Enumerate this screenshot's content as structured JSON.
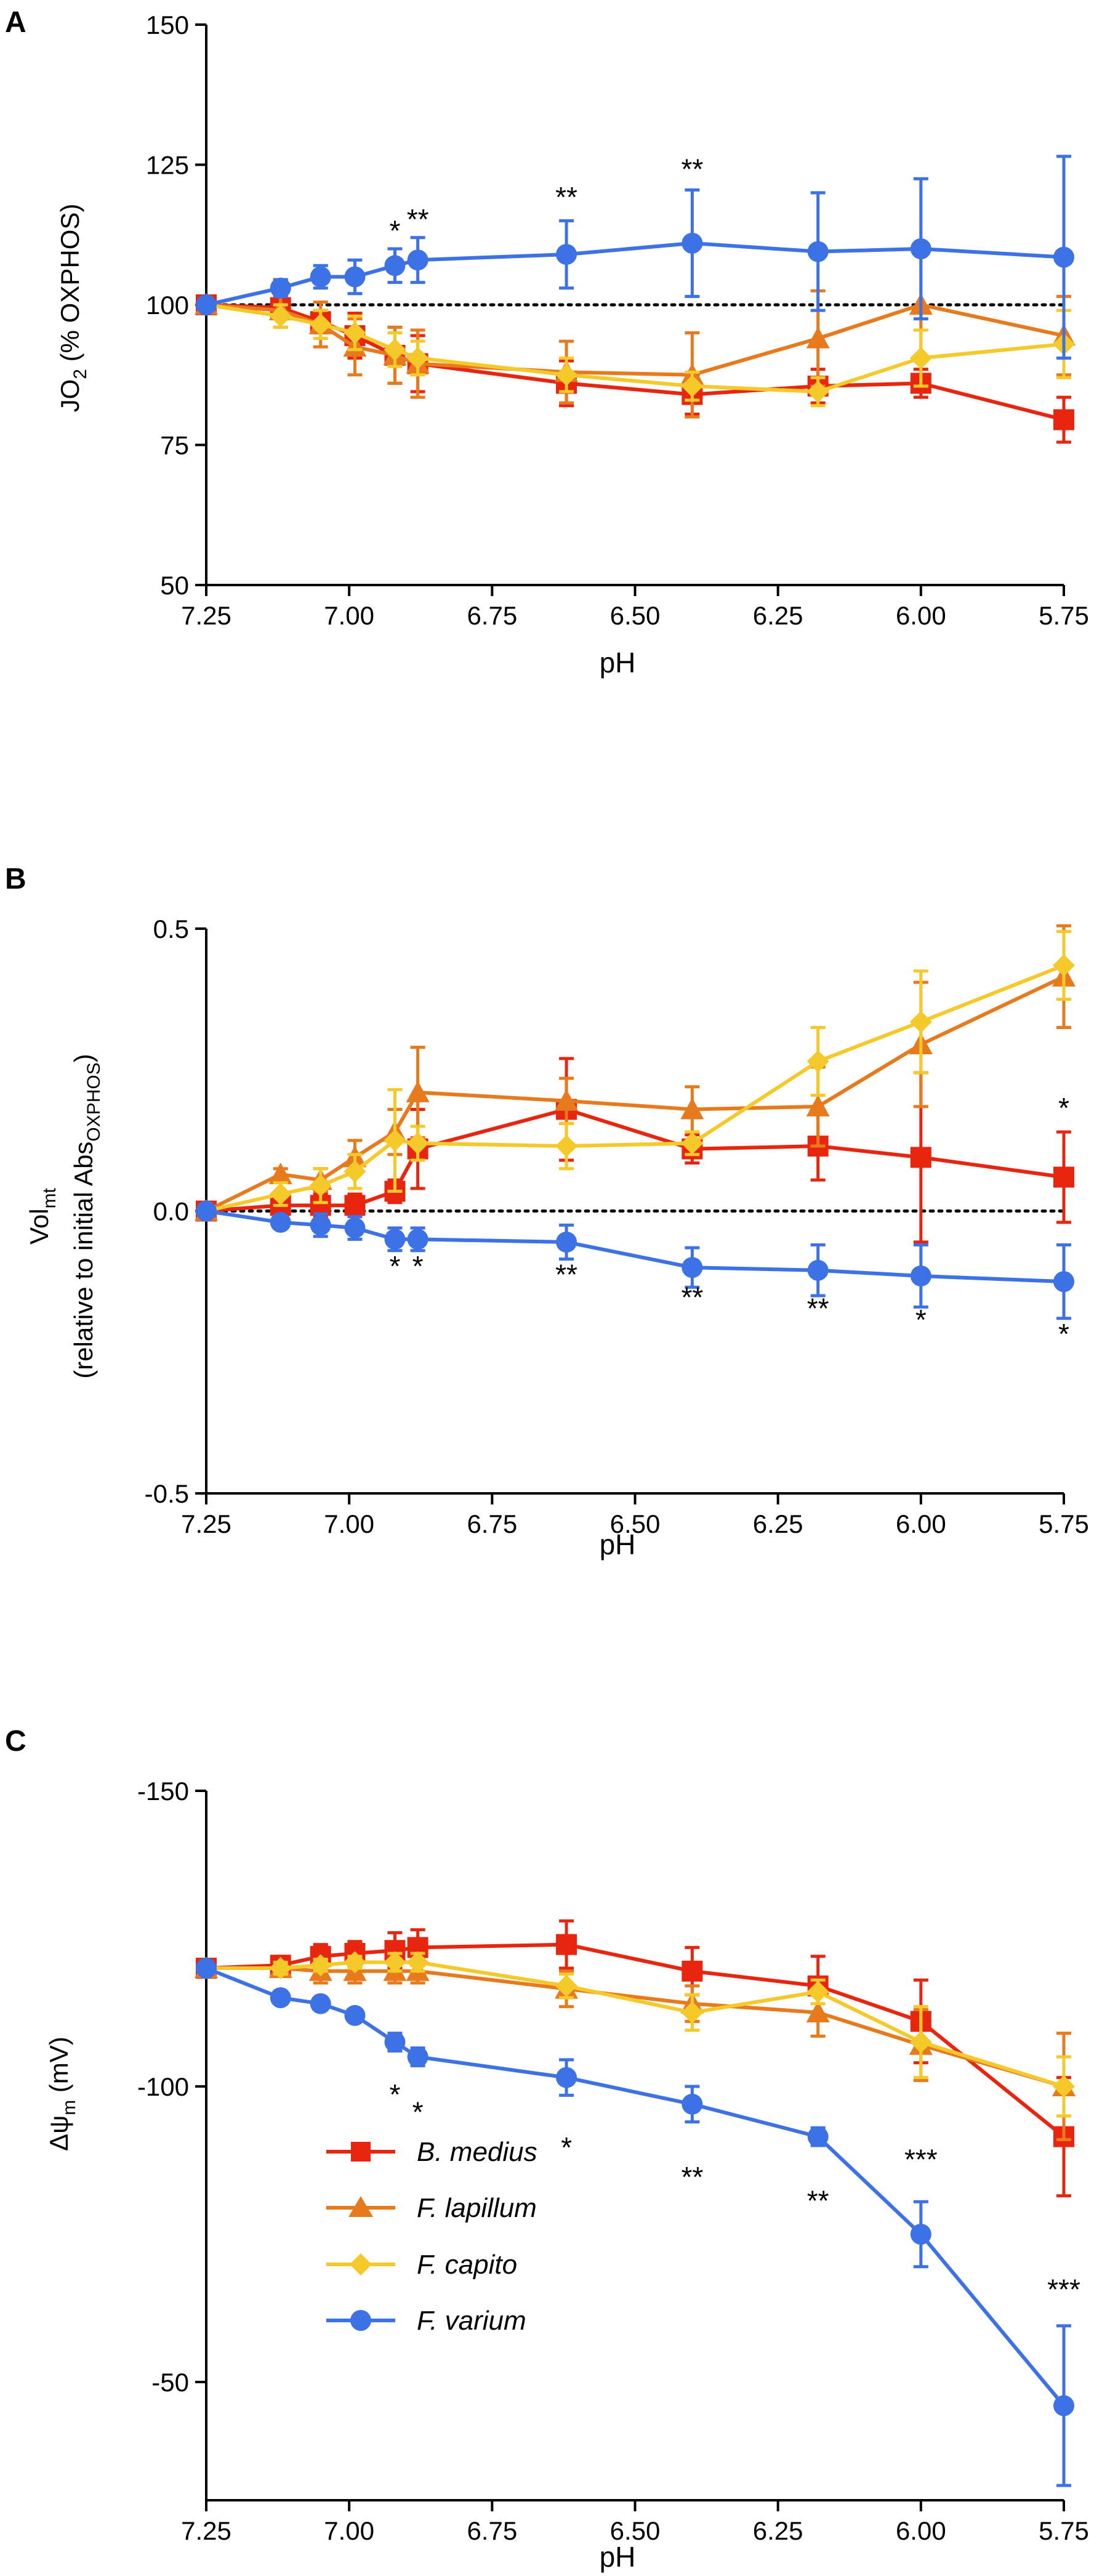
{
  "legend": {
    "items": [
      {
        "name": "B. medius",
        "color": "#E8260F",
        "marker": "square"
      },
      {
        "name": "F. lapillum",
        "color": "#E87A1E",
        "marker": "triangle"
      },
      {
        "name": "F. capito",
        "color": "#F5C92A",
        "marker": "diamond"
      },
      {
        "name": "F. varium",
        "color": "#3D71E6",
        "marker": "circle"
      }
    ],
    "placement": "inside bottom-left of panel C"
  },
  "chart_data": [
    {
      "panel": "A",
      "type": "line",
      "title": "",
      "xlabel": "pH",
      "ylabel": "JO2 (% OXPHOS)",
      "ylabel_main": "JO",
      "ylabel_sub": "2",
      "ylabel_tail": " (% OXPHOS)",
      "xlim": [
        7.25,
        5.75
      ],
      "ylim": [
        50,
        150
      ],
      "xticks": [
        7.25,
        7.0,
        6.75,
        6.5,
        6.25,
        6.0,
        5.75
      ],
      "xtick_labels": [
        "7.25",
        "7.00",
        "6.75",
        "6.50",
        "6.25",
        "6.00",
        "5.75"
      ],
      "yticks": [
        50,
        75,
        100,
        125,
        150
      ],
      "ytick_labels": [
        "50",
        "75",
        "100",
        "125",
        "150"
      ],
      "reference_line": 100,
      "series": [
        {
          "name": "B. medius",
          "color": "#E8260F",
          "marker": "square",
          "x": [
            7.25,
            7.12,
            7.05,
            6.99,
            6.92,
            6.88,
            6.62,
            6.4,
            6.18,
            6.0,
            5.75
          ],
          "y": [
            100,
            99.5,
            97,
            94.5,
            91,
            89.5,
            86,
            84,
            85.5,
            86,
            79.5
          ],
          "err": [
            0,
            2,
            2,
            4,
            5,
            5,
            4,
            3.5,
            3,
            2.5,
            4
          ]
        },
        {
          "name": "F. lapillum",
          "color": "#E87A1E",
          "marker": "triangle",
          "x": [
            7.25,
            7.12,
            7.05,
            6.99,
            6.92,
            6.88,
            6.62,
            6.4,
            6.18,
            6.0,
            5.75
          ],
          "y": [
            100,
            99,
            96.5,
            92.5,
            91,
            89.5,
            88,
            87.5,
            94,
            100,
            94.5
          ],
          "err": [
            0,
            3,
            4,
            5,
            5,
            6,
            5.5,
            7.5,
            8.5,
            10,
            7
          ]
        },
        {
          "name": "F. capito",
          "color": "#F5C92A",
          "marker": "diamond",
          "x": [
            7.25,
            7.12,
            7.05,
            6.99,
            6.92,
            6.88,
            6.62,
            6.4,
            6.18,
            6.0,
            5.75
          ],
          "y": [
            100,
            98,
            96.5,
            95,
            92,
            90.5,
            87.5,
            85.5,
            84.5,
            90.5,
            93
          ],
          "err": [
            0,
            2,
            2.5,
            3,
            3,
            3,
            3,
            2.5,
            2.5,
            5,
            6
          ]
        },
        {
          "name": "F. varium",
          "color": "#3D71E6",
          "marker": "circle",
          "x": [
            7.25,
            7.12,
            7.05,
            6.99,
            6.92,
            6.88,
            6.62,
            6.4,
            6.18,
            6.0,
            5.75
          ],
          "y": [
            100,
            103,
            105,
            105,
            107,
            108,
            109,
            111,
            109.5,
            110,
            108.5
          ],
          "err": [
            0,
            1.5,
            2,
            3,
            3,
            4,
            6,
            9.5,
            10.5,
            12.5,
            18
          ]
        }
      ],
      "annotations": [
        {
          "x": 6.92,
          "y": 111.5,
          "text": "*"
        },
        {
          "x": 6.88,
          "y": 113.5,
          "text": "**"
        },
        {
          "x": 6.62,
          "y": 117.5,
          "text": "**"
        },
        {
          "x": 6.4,
          "y": 122.5,
          "text": "**"
        }
      ]
    },
    {
      "panel": "B",
      "type": "line",
      "title": "",
      "xlabel": "pH",
      "ylabel_line1_main": "Vol",
      "ylabel_line1_sub": "mt",
      "ylabel_line2_main": "(relative to initial Abs",
      "ylabel_line2_sub": "OXPHOS",
      "ylabel_line2_tail": ")",
      "xlim": [
        7.25,
        5.75
      ],
      "ylim": [
        -0.5,
        0.5
      ],
      "xticks": [
        7.25,
        7.0,
        6.75,
        6.5,
        6.25,
        6.0,
        5.75
      ],
      "xtick_labels": [
        "7.25",
        "7.00",
        "6.75",
        "6.50",
        "6.25",
        "6.00",
        "5.75"
      ],
      "yticks": [
        -0.5,
        0.0,
        0.5
      ],
      "ytick_labels": [
        "-0.5",
        "0.0",
        "0.5"
      ],
      "reference_line": 0,
      "series": [
        {
          "name": "B. medius",
          "color": "#E8260F",
          "marker": "square",
          "x": [
            7.25,
            7.12,
            7.05,
            6.99,
            6.92,
            6.88,
            6.62,
            6.4,
            6.18,
            6.0,
            5.75
          ],
          "y": [
            0,
            0.01,
            0.01,
            0.01,
            0.035,
            0.11,
            0.18,
            0.11,
            0.115,
            0.095,
            0.06
          ],
          "err": [
            0,
            0.01,
            0.02,
            0.02,
            0.02,
            0.07,
            0.09,
            0.025,
            0.06,
            0.15,
            0.08
          ]
        },
        {
          "name": "F. lapillum",
          "color": "#E87A1E",
          "marker": "triangle",
          "x": [
            7.25,
            7.12,
            7.05,
            6.99,
            6.92,
            6.88,
            6.62,
            6.4,
            6.18,
            6.0,
            5.75
          ],
          "y": [
            0,
            0.065,
            0.055,
            0.095,
            0.14,
            0.21,
            0.195,
            0.18,
            0.185,
            0.295,
            0.415
          ],
          "err": [
            0,
            0.01,
            0.02,
            0.03,
            0.04,
            0.08,
            0.04,
            0.04,
            0.07,
            0.11,
            0.09
          ]
        },
        {
          "name": "F. capito",
          "color": "#F5C92A",
          "marker": "diamond",
          "x": [
            7.25,
            7.12,
            7.05,
            6.99,
            6.92,
            6.88,
            6.62,
            6.4,
            6.18,
            6.0,
            5.75
          ],
          "y": [
            0,
            0.03,
            0.045,
            0.07,
            0.125,
            0.12,
            0.115,
            0.12,
            0.265,
            0.335,
            0.435
          ],
          "err": [
            0,
            0.02,
            0.03,
            0.03,
            0.09,
            0.03,
            0.04,
            0.02,
            0.06,
            0.09,
            0.06
          ]
        },
        {
          "name": "F. varium",
          "color": "#3D71E6",
          "marker": "circle",
          "x": [
            7.25,
            7.12,
            7.05,
            6.99,
            6.92,
            6.88,
            6.62,
            6.4,
            6.18,
            6.0,
            5.75
          ],
          "y": [
            0,
            -0.02,
            -0.025,
            -0.03,
            -0.05,
            -0.05,
            -0.055,
            -0.1,
            -0.105,
            -0.115,
            -0.125
          ],
          "err": [
            0,
            0.01,
            0.02,
            0.02,
            0.02,
            0.02,
            0.03,
            0.035,
            0.045,
            0.055,
            0.065
          ]
        }
      ],
      "annotations": [
        {
          "x": 6.92,
          "y": -0.115,
          "text": "*"
        },
        {
          "x": 6.88,
          "y": -0.115,
          "text": "*"
        },
        {
          "x": 6.62,
          "y": -0.13,
          "text": "**"
        },
        {
          "x": 6.4,
          "y": -0.17,
          "text": "**"
        },
        {
          "x": 6.18,
          "y": -0.19,
          "text": "**"
        },
        {
          "x": 6.0,
          "y": -0.21,
          "text": "*"
        },
        {
          "x": 5.75,
          "y": -0.235,
          "text": "*"
        },
        {
          "x": 5.75,
          "y": 0.165,
          "text": "*"
        }
      ]
    },
    {
      "panel": "C",
      "type": "line",
      "title": "",
      "xlabel": "pH",
      "ylabel_pre": "Δψ",
      "ylabel_sub": "m",
      "ylabel_tail": " (mV)",
      "xlim": [
        7.25,
        5.75
      ],
      "ylim": [
        -30,
        -150
      ],
      "xticks": [
        7.25,
        7.0,
        6.75,
        6.5,
        6.25,
        6.0,
        5.75
      ],
      "xtick_labels": [
        "7.25",
        "7.00",
        "6.75",
        "6.50",
        "6.25",
        "6.00",
        "5.75"
      ],
      "yticks": [
        -150,
        -100,
        -50
      ],
      "ytick_labels": [
        "-150",
        "-100",
        "-50"
      ],
      "series": [
        {
          "name": "B. medius",
          "color": "#E8260F",
          "marker": "square",
          "x": [
            7.25,
            7.12,
            7.05,
            6.99,
            6.92,
            6.88,
            6.62,
            6.4,
            6.18,
            6.0,
            5.75
          ],
          "y": [
            -120,
            -120.5,
            -122,
            -122.5,
            -123,
            -123.5,
            -124,
            -119.5,
            -117,
            -111,
            -91.5
          ],
          "err": [
            0,
            1.5,
            2,
            2,
            3,
            3,
            4,
            4,
            5,
            7,
            10
          ]
        },
        {
          "name": "F. lapillum",
          "color": "#E87A1E",
          "marker": "triangle",
          "x": [
            7.25,
            7.12,
            7.05,
            6.99,
            6.92,
            6.88,
            6.62,
            6.4,
            6.18,
            6.0,
            5.75
          ],
          "y": [
            -120,
            -120,
            -119.5,
            -119.5,
            -119.5,
            -119.5,
            -116.5,
            -114,
            -112.5,
            -107,
            -100
          ],
          "err": [
            0,
            1,
            2,
            2,
            2,
            2,
            3,
            3,
            4,
            6,
            9
          ]
        },
        {
          "name": "F. capito",
          "color": "#F5C92A",
          "marker": "diamond",
          "x": [
            7.25,
            7.12,
            7.05,
            6.99,
            6.92,
            6.88,
            6.62,
            6.4,
            6.18,
            6.0,
            5.75
          ],
          "y": [
            -120,
            -120,
            -120.5,
            -121,
            -121,
            -121,
            -117,
            -112.5,
            -116,
            -107.5,
            -100
          ],
          "err": [
            0,
            1,
            1,
            1,
            1.5,
            1.5,
            2,
            3,
            2,
            6,
            5
          ]
        },
        {
          "name": "F. varium",
          "color": "#3D71E6",
          "marker": "circle",
          "x": [
            7.25,
            7.12,
            7.05,
            6.99,
            6.92,
            6.88,
            6.62,
            6.4,
            6.18,
            6.0,
            5.75
          ],
          "y": [
            -120,
            -115,
            -114,
            -112,
            -107.5,
            -105,
            -101.5,
            -97,
            -91.5,
            -75,
            -46
          ],
          "err": [
            0,
            1,
            1,
            1,
            1.5,
            1.5,
            3,
            3,
            1.5,
            5.5,
            13.5
          ]
        }
      ],
      "annotations": [
        {
          "x": 6.92,
          "y": -97,
          "text": "*"
        },
        {
          "x": 6.88,
          "y": -94,
          "text": "*"
        },
        {
          "x": 6.62,
          "y": -88,
          "text": "*"
        },
        {
          "x": 6.4,
          "y": -83,
          "text": "**"
        },
        {
          "x": 6.18,
          "y": -79,
          "text": "**"
        },
        {
          "x": 6.0,
          "y": -86,
          "text": "***"
        },
        {
          "x": 5.75,
          "y": -64,
          "text": "***"
        }
      ]
    }
  ]
}
